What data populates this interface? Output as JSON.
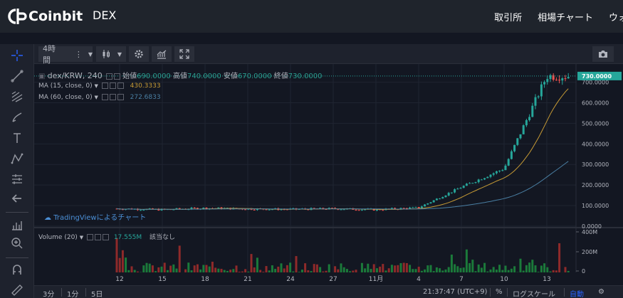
{
  "header": {
    "brand": "Coinbit",
    "section": "DEX",
    "nav": [
      "取引所",
      "相場チャート",
      "ウォ"
    ]
  },
  "toolbar": {
    "interval": "4時間"
  },
  "legend": {
    "symbol": "dex/KRW, 240",
    "open_label": "始値",
    "open": "690.0000",
    "high_label": "高値",
    "high": "740.0000",
    "low_label": "安値",
    "low": "670.0000",
    "close_label": "終値",
    "close": "730.0000"
  },
  "indicators": {
    "ma15_label": "MA (15, close, 0)",
    "ma15_value": "430.3333",
    "ma60_label": "MA (60, close, 0)",
    "ma60_value": "272.6833",
    "volume_label": "Volume (20)",
    "volume_value": "17.555M",
    "volume_na": "該当なし"
  },
  "branding": {
    "tradingview": "TradingViewによるチャート"
  },
  "bottom": {
    "range_3m": "3分",
    "range_1m": "1分",
    "range_5d": "5日",
    "time": "21:37:47 (UTC+9)",
    "percent": "%",
    "log": "ログスケール",
    "auto": "自動"
  },
  "chart_data": {
    "type": "candlestick",
    "price_axis": [
      "730.0000",
      "700.0000",
      "600.0000",
      "500.0000",
      "400.0000",
      "300.0000",
      "200.0000",
      "100.0000",
      "0.0000"
    ],
    "price_ylim": [
      0,
      740
    ],
    "current_price_label": "730.0000",
    "volume_axis": [
      "400M",
      "200M",
      "0"
    ],
    "x_tick_labels": [
      "12",
      "15",
      "18",
      "21",
      "24",
      "27",
      "11月",
      "4",
      "7",
      "10",
      "13"
    ],
    "close_series": [
      {
        "x": "12",
        "y": 85
      },
      {
        "x": "15",
        "y": 80
      },
      {
        "x": "18",
        "y": 88
      },
      {
        "x": "21",
        "y": 84
      },
      {
        "x": "24",
        "y": 82
      },
      {
        "x": "27",
        "y": 85
      },
      {
        "x": "11月",
        "y": 80
      },
      {
        "x": "4",
        "y": 90
      },
      {
        "x": "7",
        "y": 190
      },
      {
        "x": "10",
        "y": 280
      },
      {
        "x": "13",
        "y": 730
      }
    ],
    "colors": {
      "up": "#26a69a",
      "down": "#ef5350",
      "ma15": "#c79b35",
      "ma60": "#4a7fa3"
    }
  }
}
